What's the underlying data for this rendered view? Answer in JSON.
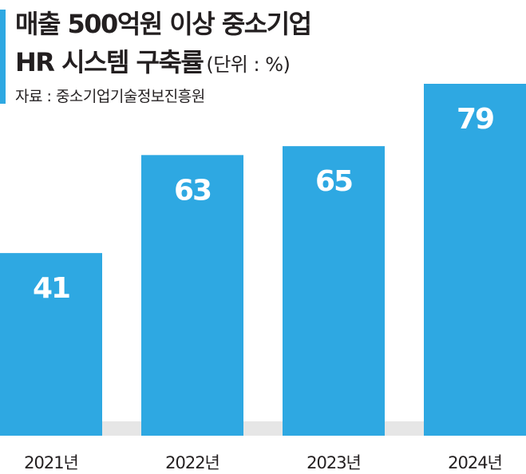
{
  "header": {
    "title_line1": "매출 500억원 이상 중소기업",
    "title_line2": "HR 시스템 구축률",
    "unit": "(단위 : %)",
    "source": "자료 : 중소기업기술정보진흥원"
  },
  "colors": {
    "bar": "#2ea8e2",
    "accent": "#2ea8e2",
    "value_label": "#ffffff",
    "baseline": "#e6e6e6",
    "text": "#231f20"
  },
  "chart_data": {
    "type": "bar",
    "title": "매출 500억원 이상 중소기업 HR 시스템 구축률",
    "unit": "%",
    "categories": [
      "2021년",
      "2022년",
      "2023년",
      "2024년"
    ],
    "values": [
      41,
      63,
      65,
      79
    ],
    "data_labels": [
      "41",
      "63",
      "65",
      "79"
    ],
    "grid": false,
    "legend": "none"
  }
}
